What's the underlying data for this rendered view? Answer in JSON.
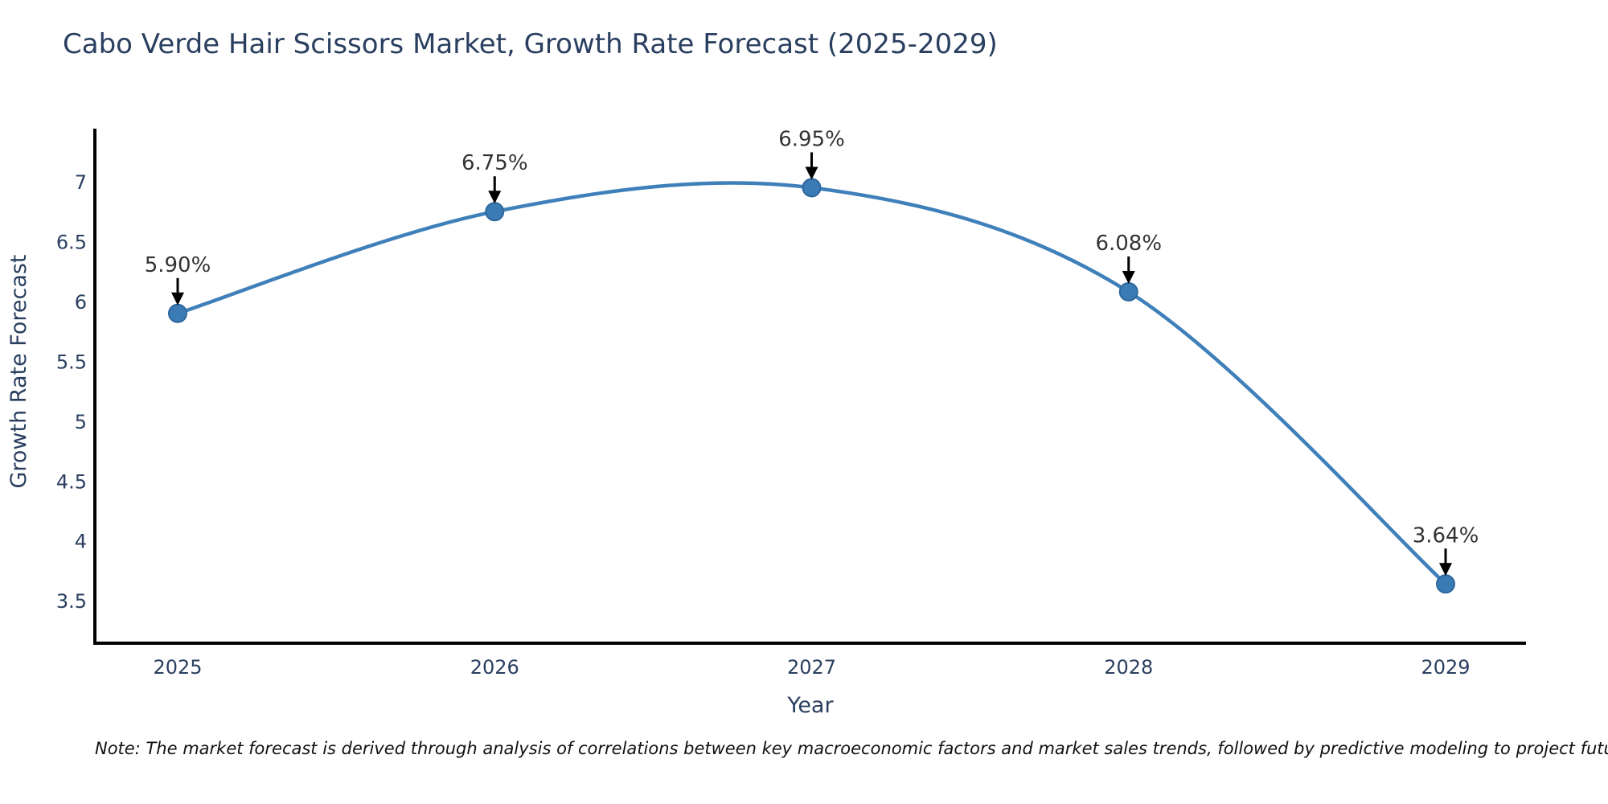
{
  "chart_data": {
    "type": "line",
    "title": "Cabo Verde Hair Scissors Market, Growth Rate Forecast (2025-2029)",
    "xlabel": "Year",
    "ylabel": "Growth Rate Forecast",
    "x": [
      2025,
      2026,
      2027,
      2028,
      2029
    ],
    "series": [
      {
        "name": "Growth Rate Forecast",
        "values": [
          5.9,
          6.75,
          6.95,
          6.08,
          3.64
        ]
      }
    ],
    "point_labels": [
      "5.90%",
      "6.75%",
      "6.95%",
      "6.08%",
      "3.64%"
    ],
    "x_tick_labels": [
      "2025",
      "2026",
      "2027",
      "2028",
      "2029"
    ],
    "y_ticks": [
      3.5,
      4,
      4.5,
      5,
      5.5,
      6,
      6.5,
      7
    ],
    "ylim": [
      3.15,
      7.45
    ],
    "line_shape": "spline",
    "grid": false,
    "legend_position": "none",
    "colors": {
      "line": "#3f80ba",
      "marker": "#3a7ab5",
      "marker_edge": "#2f679c",
      "axis": "#000000",
      "arrow": "#000000",
      "heading_text": "#2a3f5f",
      "annotation_text": "#333333"
    },
    "note": "Note: The market forecast is derived through analysis of correlations between key macroeconomic factors and market sales trends, followed by predictive modeling to project future sales"
  }
}
